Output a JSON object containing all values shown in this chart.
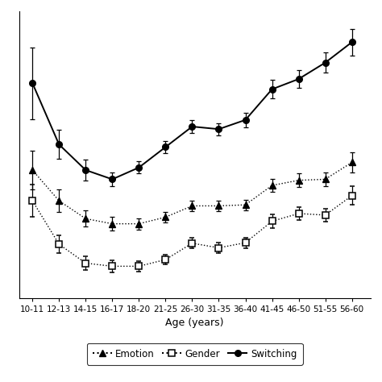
{
  "age_labels": [
    "10-11",
    "12-13",
    "14-15",
    "16-17",
    "18-20",
    "21-25",
    "26-30",
    "31-35",
    "36-40",
    "41-45",
    "46-50",
    "51-55",
    "56-60"
  ],
  "x": [
    0,
    1,
    2,
    3,
    4,
    5,
    6,
    7,
    8,
    9,
    10,
    11,
    12
  ],
  "emotion_y": [
    650,
    590,
    555,
    545,
    545,
    558,
    580,
    580,
    582,
    620,
    630,
    632,
    665
  ],
  "emotion_err": [
    38,
    22,
    16,
    13,
    11,
    10,
    10,
    10,
    10,
    13,
    13,
    14,
    20
  ],
  "gender_y": [
    590,
    505,
    468,
    462,
    462,
    475,
    507,
    498,
    508,
    550,
    565,
    562,
    600
  ],
  "gender_err": [
    32,
    18,
    14,
    12,
    10,
    10,
    10,
    10,
    10,
    13,
    13,
    13,
    18
  ],
  "switching_y": [
    820,
    700,
    650,
    632,
    655,
    695,
    735,
    730,
    748,
    808,
    828,
    860,
    900
  ],
  "switching_err": [
    70,
    28,
    20,
    14,
    12,
    12,
    12,
    12,
    14,
    18,
    18,
    20,
    26
  ],
  "xlabel": "Age (years)",
  "background_color": "#ffffff",
  "ylim_low": 400,
  "ylim_high": 960
}
